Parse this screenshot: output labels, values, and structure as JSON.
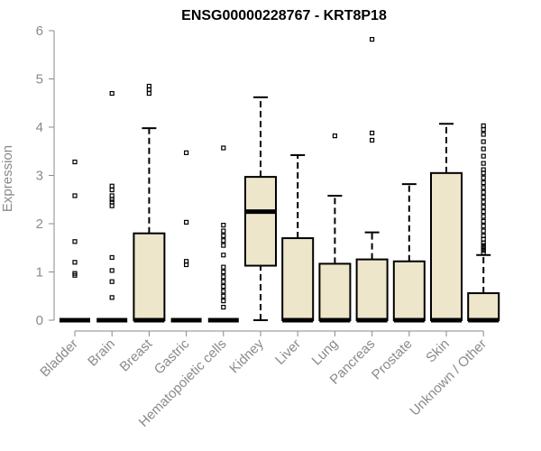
{
  "chart_data": {
    "type": "box",
    "title": "ENSG00000228767 - KRT8P18",
    "xlabel": "",
    "ylabel": "Expression",
    "ylim": [
      0,
      6
    ],
    "yticks": [
      0,
      1,
      2,
      3,
      4,
      5,
      6
    ],
    "grid": false,
    "legend": "none",
    "colors": {
      "box_fill": "#ede6cb",
      "box_stroke": "#000000",
      "axis": "#8a8a8a",
      "title": "#000000"
    },
    "categories": [
      "Bladder",
      "Brain",
      "Breast",
      "Gastric",
      "Hematopoietic cells",
      "Kidney",
      "Liver",
      "Lung",
      "Pancreas",
      "Prostate",
      "Skin",
      "Unknown / Other"
    ],
    "boxes": [
      {
        "category": "Bladder",
        "min": 0,
        "q1": 0,
        "median": 0,
        "q3": 0,
        "max": 0,
        "outliers": [
          0.93,
          0.97,
          1.2,
          1.63,
          2.58,
          3.28
        ]
      },
      {
        "category": "Brain",
        "min": 0,
        "q1": 0,
        "median": 0,
        "q3": 0,
        "max": 0,
        "outliers": [
          0.47,
          0.8,
          1.03,
          1.3,
          2.37,
          2.45,
          2.5,
          2.58,
          2.7,
          2.78,
          4.7
        ]
      },
      {
        "category": "Breast",
        "min": 0,
        "q1": 0,
        "median": 0,
        "q3": 1.8,
        "max": 3.98,
        "outliers": [
          4.7,
          4.78,
          4.85
        ]
      },
      {
        "category": "Gastric",
        "min": 0,
        "q1": 0,
        "median": 0,
        "q3": 0,
        "max": 0,
        "outliers": [
          1.15,
          1.22,
          2.03,
          3.47
        ]
      },
      {
        "category": "Hematopoietic cells",
        "min": 0,
        "q1": 0,
        "median": 0,
        "q3": 0,
        "max": 0,
        "outliers": [
          0.27,
          0.4,
          0.5,
          0.6,
          0.7,
          0.8,
          0.9,
          1.0,
          1.1,
          1.35,
          1.55,
          1.65,
          1.75,
          1.85,
          1.97,
          3.57
        ]
      },
      {
        "category": "Kidney",
        "min": 0,
        "q1": 1.13,
        "median": 2.25,
        "q3": 2.97,
        "max": 4.62,
        "outliers": []
      },
      {
        "category": "Liver",
        "min": 0,
        "q1": 0,
        "median": 0,
        "q3": 1.7,
        "max": 3.42,
        "outliers": []
      },
      {
        "category": "Lung",
        "min": 0,
        "q1": 0,
        "median": 0,
        "q3": 1.17,
        "max": 2.58,
        "outliers": [
          3.82
        ]
      },
      {
        "category": "Pancreas",
        "min": 0,
        "q1": 0,
        "median": 0,
        "q3": 1.26,
        "max": 1.82,
        "outliers": [
          3.73,
          3.88,
          5.82
        ]
      },
      {
        "category": "Prostate",
        "min": 0,
        "q1": 0,
        "median": 0,
        "q3": 1.22,
        "max": 2.82,
        "outliers": []
      },
      {
        "category": "Skin",
        "min": 0,
        "q1": 0,
        "median": 0,
        "q3": 3.05,
        "max": 4.07,
        "outliers": []
      },
      {
        "category": "Unknown / Other",
        "min": 0,
        "q1": 0,
        "median": 0,
        "q3": 0.56,
        "max": 1.35,
        "outliers": [
          1.4,
          1.45,
          1.5,
          1.55,
          1.6,
          1.68,
          1.75,
          1.85,
          1.95,
          2.05,
          2.15,
          2.25,
          2.35,
          2.45,
          2.55,
          2.65,
          2.75,
          2.85,
          2.95,
          3.05,
          3.12,
          3.25,
          3.4,
          3.55,
          3.7,
          3.85,
          3.95,
          4.03
        ]
      }
    ]
  }
}
